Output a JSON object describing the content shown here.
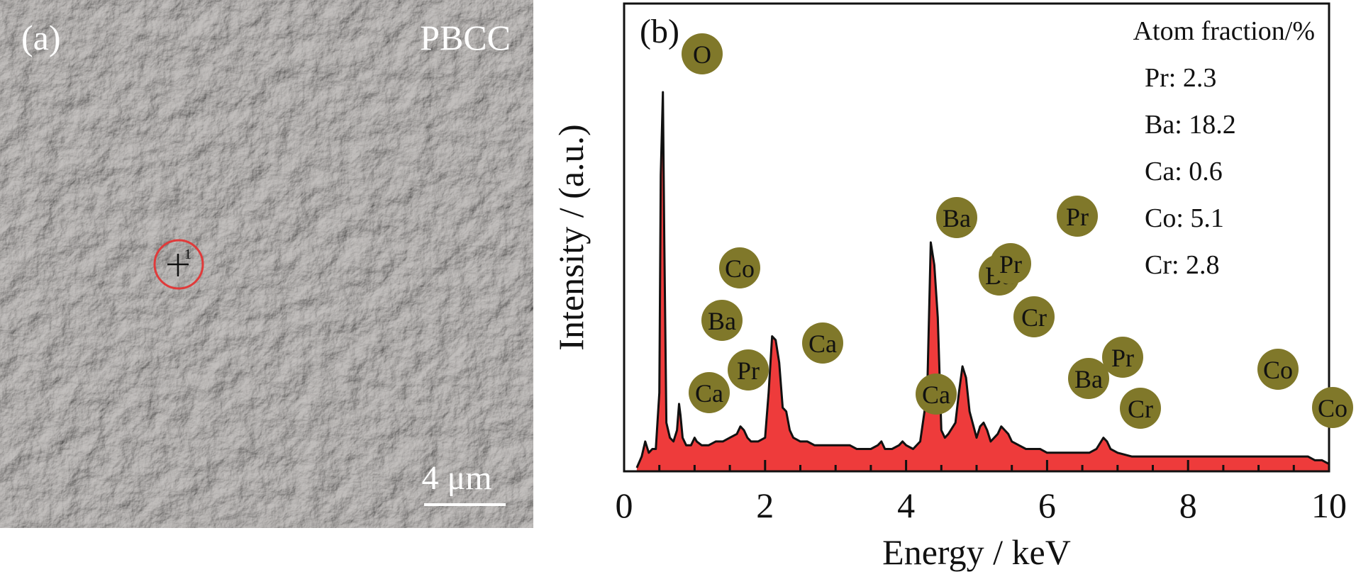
{
  "panel_a": {
    "label": "(a)",
    "sample": "PBCC",
    "point_label": "1",
    "scale_bar": "4 μm"
  },
  "chart_data": {
    "type": "line",
    "panel_label": "(b)",
    "xlabel": "Energy / keV",
    "ylabel": "Intensity / (a.u.)",
    "xlim": [
      0,
      10
    ],
    "ylim": [
      0,
      100
    ],
    "xticks": [
      0,
      2,
      4,
      6,
      8,
      10
    ],
    "grid": false,
    "legend": "none",
    "colors": {
      "fill": "#ee3b3b",
      "line": "#111111",
      "marker": "#80782a"
    },
    "series": [
      {
        "x": [
          0.18,
          0.25,
          0.3,
          0.35,
          0.4,
          0.45,
          0.5,
          0.52,
          0.55,
          0.57,
          0.6,
          0.65,
          0.7,
          0.75,
          0.78,
          0.8,
          0.83,
          0.88,
          0.95,
          1.0,
          1.03,
          1.1,
          1.2,
          1.3,
          1.4,
          1.5,
          1.6,
          1.65,
          1.7,
          1.75,
          1.8,
          1.9,
          2.0,
          2.05,
          2.1,
          2.15,
          2.2,
          2.25,
          2.3,
          2.35,
          2.4,
          2.5,
          2.6,
          2.7,
          2.8,
          2.9,
          3.0,
          3.1,
          3.2,
          3.3,
          3.4,
          3.5,
          3.6,
          3.65,
          3.7,
          3.8,
          3.9,
          3.95,
          4.0,
          4.1,
          4.2,
          4.3,
          4.35,
          4.4,
          4.45,
          4.5,
          4.55,
          4.6,
          4.7,
          4.75,
          4.8,
          4.85,
          4.9,
          5.0,
          5.05,
          5.1,
          5.15,
          5.2,
          5.3,
          5.35,
          5.4,
          5.45,
          5.5,
          5.6,
          5.7,
          5.8,
          5.9,
          6.0,
          6.2,
          6.4,
          6.6,
          6.7,
          6.8,
          6.85,
          6.9,
          7.0,
          7.2,
          7.4,
          7.6,
          7.8,
          8.0,
          8.5,
          9.0,
          9.3,
          9.5,
          9.6,
          9.7,
          9.8,
          9.9,
          10.0
        ],
        "y": [
          0,
          3,
          7,
          4,
          5,
          5,
          20,
          78,
          100,
          60,
          12,
          8,
          7,
          10,
          17,
          14,
          8,
          6,
          6,
          8,
          7,
          6,
          6,
          7,
          7,
          8,
          9,
          11,
          10,
          8,
          7,
          7,
          8,
          20,
          35,
          34,
          28,
          16,
          15,
          10,
          8,
          7,
          7,
          6,
          6,
          6,
          6,
          6,
          6,
          5,
          5,
          5,
          6,
          7,
          5,
          5,
          6,
          7,
          6,
          5,
          7,
          20,
          60,
          54,
          40,
          10,
          8,
          9,
          12,
          20,
          27,
          24,
          15,
          8,
          11,
          12,
          10,
          7,
          9,
          11,
          10,
          9,
          7,
          6,
          5,
          5,
          5,
          4,
          4,
          4,
          4,
          5,
          8,
          7,
          5,
          4,
          3,
          3,
          3,
          3,
          3,
          3,
          3,
          3,
          3,
          3,
          3,
          2,
          2,
          1
        ]
      }
    ],
    "peak_labels": [
      "O",
      "Co",
      "Ba",
      "Pr",
      "Ca",
      "Ca",
      "Ca",
      "Ba",
      "Ba",
      "Pr",
      "Cr",
      "Pr",
      "Ba",
      "Pr",
      "Cr",
      "Co",
      "Co"
    ],
    "annotation": {
      "title": "Atom fraction/%",
      "lines": [
        "Pr: 2.3",
        "Ba: 18.2",
        "Ca: 0.6",
        "Co: 5.1",
        "Cr: 2.8"
      ]
    }
  }
}
